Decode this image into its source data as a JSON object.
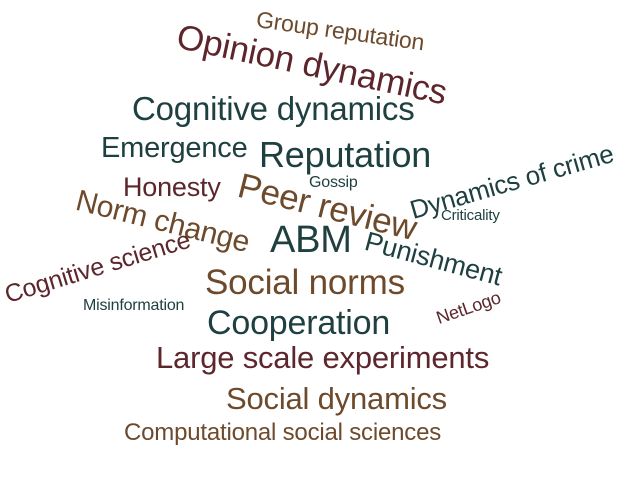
{
  "palette": {
    "teal": "#1f4040",
    "brown": "#6e4a2c",
    "maroon": "#5c262c"
  },
  "words": [
    {
      "text": "Group reputation",
      "color": "#6e4a2c"
    },
    {
      "text": "Opinion dynamics",
      "color": "#5c262c"
    },
    {
      "text": "Cognitive dynamics",
      "color": "#1f4040"
    },
    {
      "text": "Emergence",
      "color": "#1f4040"
    },
    {
      "text": "Reputation",
      "color": "#1f4040"
    },
    {
      "text": "Dynamics of crime",
      "color": "#1f4040"
    },
    {
      "text": "Honesty",
      "color": "#5c262c"
    },
    {
      "text": "Peer review",
      "color": "#6e4a2c"
    },
    {
      "text": "Gossip",
      "color": "#1f4040"
    },
    {
      "text": "Norm change",
      "color": "#6e4a2c"
    },
    {
      "text": "Criticality",
      "color": "#1f4040"
    },
    {
      "text": "ABM",
      "color": "#1f4040"
    },
    {
      "text": "Punishment",
      "color": "#1f4040"
    },
    {
      "text": "Cognitive science",
      "color": "#5c262c"
    },
    {
      "text": "Social norms",
      "color": "#6e4a2c"
    },
    {
      "text": "Misinformation",
      "color": "#1f4040"
    },
    {
      "text": "NetLogo",
      "color": "#5c262c"
    },
    {
      "text": "Cooperation",
      "color": "#1f4040"
    },
    {
      "text": "Large scale experiments",
      "color": "#5c262c"
    },
    {
      "text": "Social dynamics",
      "color": "#6e4a2c"
    },
    {
      "text": "Computational social sciences",
      "color": "#6e4a2c"
    }
  ]
}
